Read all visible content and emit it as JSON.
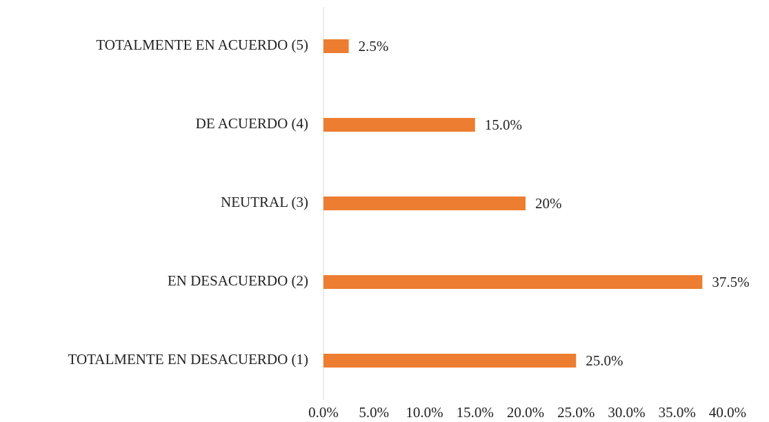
{
  "chart_data": {
    "type": "bar",
    "orientation": "horizontal",
    "categories": [
      "TOTALMENTE EN DESACUERDO (1)",
      "EN DESACUERDO (2)",
      "NEUTRAL (3)",
      "DE ACUERDO (4)",
      "TOTALMENTE EN ACUERDO (5)"
    ],
    "values": [
      25,
      37.5,
      20,
      15,
      2.5
    ],
    "value_labels": [
      "25.0%",
      "37.5%",
      "20%",
      "15.0%",
      "2.5%"
    ],
    "color": "#ed7d31",
    "xlim": [
      0,
      40
    ],
    "xticks": [
      {
        "value": 0,
        "label": "0.0%"
      },
      {
        "value": 5,
        "label": "5.0%"
      },
      {
        "value": 10,
        "label": "10.0%"
      },
      {
        "value": 15,
        "label": "15.0%"
      },
      {
        "value": 20,
        "label": "20.0%"
      },
      {
        "value": 25,
        "label": "25.0%"
      },
      {
        "value": 30,
        "label": "30.0%"
      },
      {
        "value": 35,
        "label": "35.0%"
      },
      {
        "value": 40,
        "label": "40.0%"
      }
    ],
    "grid": false
  }
}
